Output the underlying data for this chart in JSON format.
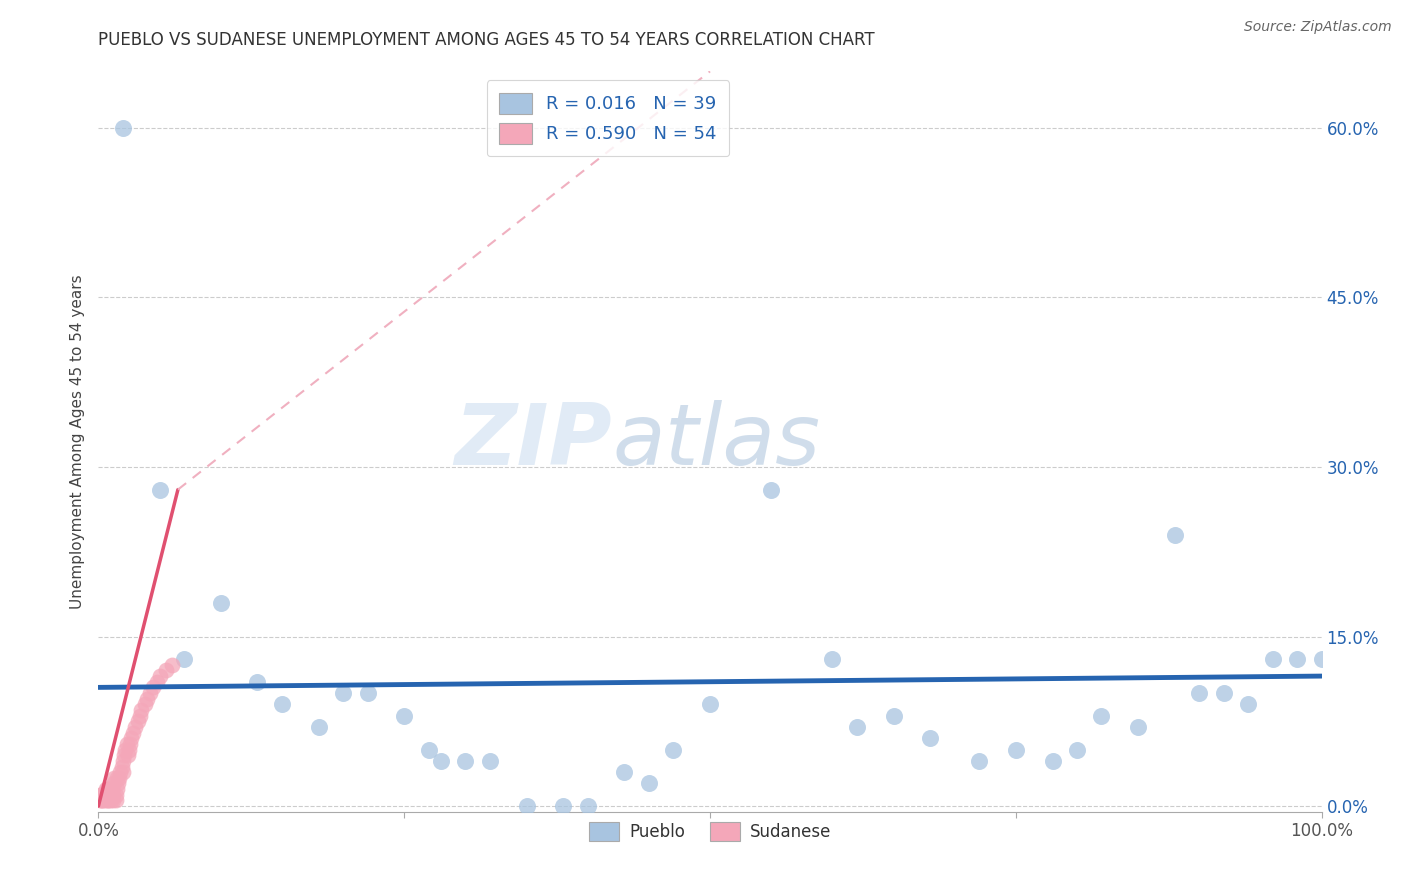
{
  "title": "PUEBLO VS SUDANESE UNEMPLOYMENT AMONG AGES 45 TO 54 YEARS CORRELATION CHART",
  "source": "Source: ZipAtlas.com",
  "ylabel": "Unemployment Among Ages 45 to 54 years",
  "xlim": [
    0.0,
    1.0
  ],
  "ylim": [
    -0.005,
    0.65
  ],
  "ytick_vals": [
    0.0,
    0.15,
    0.3,
    0.45,
    0.6
  ],
  "ytick_labels": [
    "0.0%",
    "15.0%",
    "30.0%",
    "45.0%",
    "60.0%"
  ],
  "pueblo_R": "0.016",
  "pueblo_N": "39",
  "sudanese_R": "0.590",
  "sudanese_N": "54",
  "pueblo_color": "#a8c4e0",
  "sudanese_color": "#f4a7b9",
  "pueblo_line_color": "#2664b0",
  "sudanese_line_color": "#e05070",
  "sudanese_dash_color": "#f0b0c0",
  "legend_text_color": "#2664b0",
  "watermark_zip": "ZIP",
  "watermark_atlas": "atlas",
  "background_color": "#ffffff",
  "pueblo_points": [
    [
      0.02,
      0.6
    ],
    [
      0.05,
      0.28
    ],
    [
      0.07,
      0.13
    ],
    [
      0.1,
      0.18
    ],
    [
      0.13,
      0.11
    ],
    [
      0.15,
      0.09
    ],
    [
      0.18,
      0.07
    ],
    [
      0.2,
      0.1
    ],
    [
      0.22,
      0.1
    ],
    [
      0.25,
      0.08
    ],
    [
      0.27,
      0.05
    ],
    [
      0.28,
      0.04
    ],
    [
      0.3,
      0.04
    ],
    [
      0.32,
      0.04
    ],
    [
      0.35,
      0.0
    ],
    [
      0.38,
      0.0
    ],
    [
      0.4,
      0.0
    ],
    [
      0.43,
      0.03
    ],
    [
      0.45,
      0.02
    ],
    [
      0.47,
      0.05
    ],
    [
      0.5,
      0.09
    ],
    [
      0.55,
      0.28
    ],
    [
      0.6,
      0.13
    ],
    [
      0.62,
      0.07
    ],
    [
      0.65,
      0.08
    ],
    [
      0.68,
      0.06
    ],
    [
      0.72,
      0.04
    ],
    [
      0.75,
      0.05
    ],
    [
      0.78,
      0.04
    ],
    [
      0.8,
      0.05
    ],
    [
      0.82,
      0.08
    ],
    [
      0.85,
      0.07
    ],
    [
      0.88,
      0.24
    ],
    [
      0.9,
      0.1
    ],
    [
      0.92,
      0.1
    ],
    [
      0.94,
      0.09
    ],
    [
      0.96,
      0.13
    ],
    [
      0.98,
      0.13
    ],
    [
      1.0,
      0.13
    ]
  ],
  "sudanese_points": [
    [
      0.005,
      0.005
    ],
    [
      0.007,
      0.005
    ],
    [
      0.008,
      0.005
    ],
    [
      0.009,
      0.005
    ],
    [
      0.01,
      0.005
    ],
    [
      0.01,
      0.01
    ],
    [
      0.011,
      0.01
    ],
    [
      0.011,
      0.015
    ],
    [
      0.012,
      0.005
    ],
    [
      0.012,
      0.01
    ],
    [
      0.013,
      0.02
    ],
    [
      0.013,
      0.025
    ],
    [
      0.014,
      0.005
    ],
    [
      0.014,
      0.01
    ],
    [
      0.015,
      0.015
    ],
    [
      0.016,
      0.02
    ],
    [
      0.017,
      0.025
    ],
    [
      0.018,
      0.03
    ],
    [
      0.019,
      0.035
    ],
    [
      0.02,
      0.04
    ],
    [
      0.021,
      0.045
    ],
    [
      0.022,
      0.05
    ],
    [
      0.023,
      0.055
    ],
    [
      0.024,
      0.045
    ],
    [
      0.025,
      0.05
    ],
    [
      0.026,
      0.055
    ],
    [
      0.027,
      0.06
    ],
    [
      0.028,
      0.065
    ],
    [
      0.03,
      0.07
    ],
    [
      0.032,
      0.075
    ],
    [
      0.034,
      0.08
    ],
    [
      0.035,
      0.085
    ],
    [
      0.038,
      0.09
    ],
    [
      0.04,
      0.095
    ],
    [
      0.042,
      0.1
    ],
    [
      0.045,
      0.105
    ],
    [
      0.048,
      0.11
    ],
    [
      0.05,
      0.115
    ],
    [
      0.055,
      0.12
    ],
    [
      0.06,
      0.125
    ],
    [
      0.004,
      0.005
    ],
    [
      0.004,
      0.01
    ],
    [
      0.003,
      0.005
    ],
    [
      0.003,
      0.01
    ],
    [
      0.002,
      0.005
    ],
    [
      0.002,
      0.01
    ],
    [
      0.001,
      0.005
    ],
    [
      0.001,
      0.01
    ],
    [
      0.006,
      0.01
    ],
    [
      0.006,
      0.015
    ],
    [
      0.007,
      0.015
    ],
    [
      0.008,
      0.015
    ],
    [
      0.015,
      0.025
    ],
    [
      0.02,
      0.03
    ]
  ],
  "pueblo_line": [
    0.0,
    1.0,
    0.105,
    0.115
  ],
  "sudanese_line_solid": [
    0.0,
    0.065,
    0.0,
    0.28
  ],
  "sudanese_line_dashed": [
    0.065,
    0.5,
    0.28,
    0.65
  ]
}
